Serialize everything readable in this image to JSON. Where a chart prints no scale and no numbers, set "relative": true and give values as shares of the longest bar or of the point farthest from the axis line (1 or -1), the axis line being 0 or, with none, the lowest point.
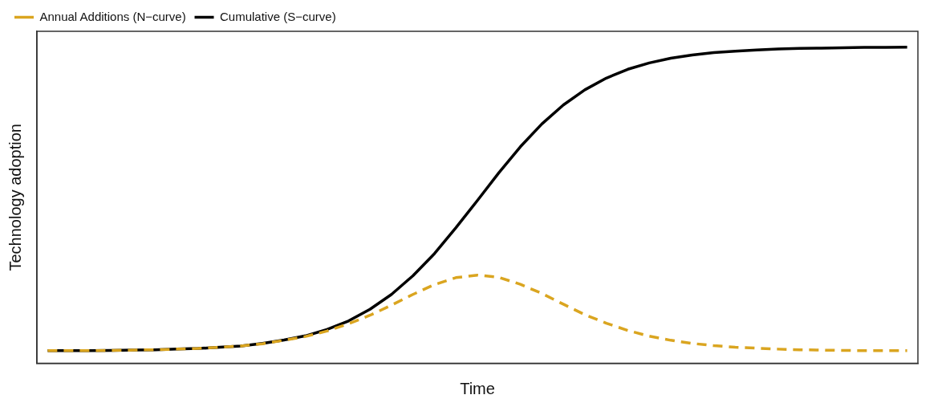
{
  "chart_data": {
    "type": "line",
    "relative": true,
    "xlabel": "Time",
    "ylabel": "Technology adoption",
    "legend": "top left",
    "marker": "none",
    "grid": false,
    "categories": [
      null,
      null,
      null,
      null,
      null,
      null,
      null,
      null,
      null,
      null,
      null,
      null,
      null,
      null,
      null,
      null,
      null,
      null,
      null,
      null,
      null,
      null,
      null,
      null,
      null,
      null,
      null,
      null,
      null,
      null,
      null,
      null,
      null,
      null,
      null,
      null,
      null,
      null,
      null,
      null,
      null
    ],
    "series": [
      {
        "name": "Annual Additions (N−curve)",
        "color": "#daa520",
        "line_style": "dashed",
        "values": [
          0.04,
          0.04,
          0.04,
          0.041,
          0.042,
          0.043,
          0.045,
          0.047,
          0.051,
          0.055,
          0.062,
          0.073,
          0.085,
          0.102,
          0.125,
          0.152,
          0.184,
          0.218,
          0.249,
          0.271,
          0.279,
          0.272,
          0.25,
          0.221,
          0.187,
          0.154,
          0.127,
          0.104,
          0.086,
          0.073,
          0.063,
          0.056,
          0.051,
          0.048,
          0.045,
          0.043,
          0.042,
          0.041,
          0.04,
          0.04,
          0.04
        ]
      },
      {
        "name": "Cumulative (S−curve)",
        "color": "#000000",
        "line_style": "solid",
        "values": [
          0.04,
          0.04,
          0.04,
          0.041,
          0.042,
          0.043,
          0.045,
          0.047,
          0.051,
          0.055,
          0.063,
          0.074,
          0.087,
          0.107,
          0.134,
          0.171,
          0.218,
          0.277,
          0.347,
          0.429,
          0.515,
          0.603,
          0.685,
          0.757,
          0.817,
          0.865,
          0.902,
          0.93,
          0.95,
          0.965,
          0.975,
          0.983,
          0.987,
          0.991,
          0.994,
          0.996,
          0.997,
          0.998,
          0.999,
          0.999,
          1
        ]
      }
    ]
  }
}
